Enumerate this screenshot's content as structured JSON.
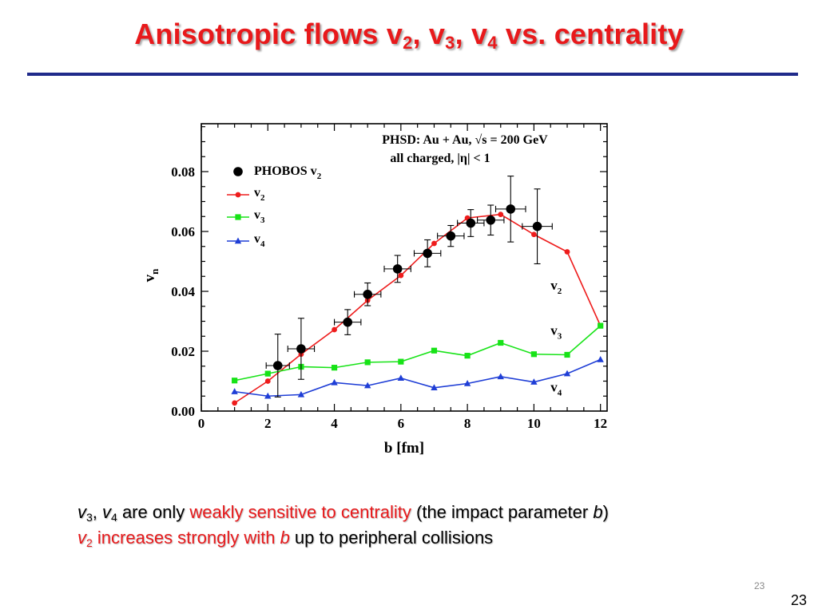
{
  "slide": {
    "title_main": "Anisotropic flows v",
    "title_sub1": "2",
    "title_sep1": ", v",
    "title_sub2": "3",
    "title_sep2": ", v",
    "title_sub3": "4",
    "title_tail": " vs. centrality",
    "title_color": "#e8191b",
    "rule_color": "#1f2a8a",
    "bullet1": {
      "v": "v",
      "s3": "3",
      "sep": ", ",
      "v2": "v",
      "s4": "4",
      "plain1": " are only ",
      "red": "weakly sensitive to centrality",
      "plain2": " (the impact parameter ",
      "b": "b",
      "close": ")"
    },
    "bullet2": {
      "v": "v",
      "s2": "2",
      "red": " increases strongly with ",
      "b": "b",
      "plain": " up to peripheral collisions"
    },
    "page_number_small": "23",
    "page_number": "23"
  },
  "chart_data": {
    "type": "line",
    "xlabel": "b [fm]",
    "ylabel_main": "v",
    "ylabel_sub": "n",
    "xlim": [
      0,
      12.2
    ],
    "ylim": [
      0,
      0.096
    ],
    "xticks": [
      0,
      2,
      4,
      6,
      8,
      10,
      12
    ],
    "yticks": [
      0.0,
      0.02,
      0.04,
      0.06,
      0.08
    ],
    "ytick_labels": [
      "0.00",
      "0.02",
      "0.04",
      "0.06",
      "0.08"
    ],
    "annotation_line1": "PHSD: Au + Au, √s = 200 GeV",
    "annotation_line2": "all charged, |η| < 1",
    "legend_position": "top-left",
    "series": [
      {
        "name": "PHOBOS v",
        "name_sub": "2",
        "kind": "points",
        "color": "#000000",
        "points": [
          {
            "x": 2.3,
            "y": 0.0152,
            "xerr": 0.35,
            "yerr": 0.0105
          },
          {
            "x": 3.0,
            "y": 0.0208,
            "xerr": 0.4,
            "yerr": 0.0102
          },
          {
            "x": 4.4,
            "y": 0.0297,
            "xerr": 0.4,
            "yerr": 0.0042
          },
          {
            "x": 5.0,
            "y": 0.039,
            "xerr": 0.4,
            "yerr": 0.0038
          },
          {
            "x": 5.9,
            "y": 0.0475,
            "xerr": 0.4,
            "yerr": 0.0045
          },
          {
            "x": 6.8,
            "y": 0.0527,
            "xerr": 0.4,
            "yerr": 0.0045
          },
          {
            "x": 7.5,
            "y": 0.0585,
            "xerr": 0.4,
            "yerr": 0.0035
          },
          {
            "x": 8.1,
            "y": 0.0628,
            "xerr": 0.4,
            "yerr": 0.0045
          },
          {
            "x": 8.7,
            "y": 0.0638,
            "xerr": 0.4,
            "yerr": 0.005
          },
          {
            "x": 9.3,
            "y": 0.0675,
            "xerr": 0.45,
            "yerr": 0.011
          },
          {
            "x": 10.1,
            "y": 0.0617,
            "xerr": 0.45,
            "yerr": 0.0125
          }
        ]
      },
      {
        "name": "v",
        "name_sub": "2",
        "kind": "line",
        "marker": "circle",
        "color": "#ee1c1c",
        "end_label": "v",
        "end_label_sub": "2",
        "x": [
          1,
          2,
          3,
          4,
          5,
          6,
          7,
          8,
          9,
          10,
          11,
          12
        ],
        "values": [
          0.0027,
          0.01,
          0.019,
          0.0272,
          0.037,
          0.0453,
          0.056,
          0.0645,
          0.0657,
          0.059,
          0.0532,
          0.0285
        ]
      },
      {
        "name": "v",
        "name_sub": "3",
        "kind": "line",
        "marker": "square",
        "color": "#17e317",
        "end_label": "v",
        "end_label_sub": "3",
        "x": [
          1,
          2,
          3,
          4,
          5,
          6,
          7,
          8,
          9,
          10,
          11,
          12
        ],
        "values": [
          0.0102,
          0.0125,
          0.0148,
          0.0145,
          0.0163,
          0.0165,
          0.0202,
          0.0185,
          0.0228,
          0.019,
          0.0188,
          0.0285
        ]
      },
      {
        "name": "v",
        "name_sub": "4",
        "kind": "line",
        "marker": "triangle",
        "color": "#1f3ed6",
        "end_label": "v",
        "end_label_sub": "4",
        "x": [
          1,
          2,
          3,
          4,
          5,
          6,
          7,
          8,
          9,
          10,
          11,
          12
        ],
        "values": [
          0.0065,
          0.005,
          0.0055,
          0.0095,
          0.0085,
          0.011,
          0.0078,
          0.0092,
          0.0115,
          0.0097,
          0.0125,
          0.0172
        ]
      }
    ]
  }
}
